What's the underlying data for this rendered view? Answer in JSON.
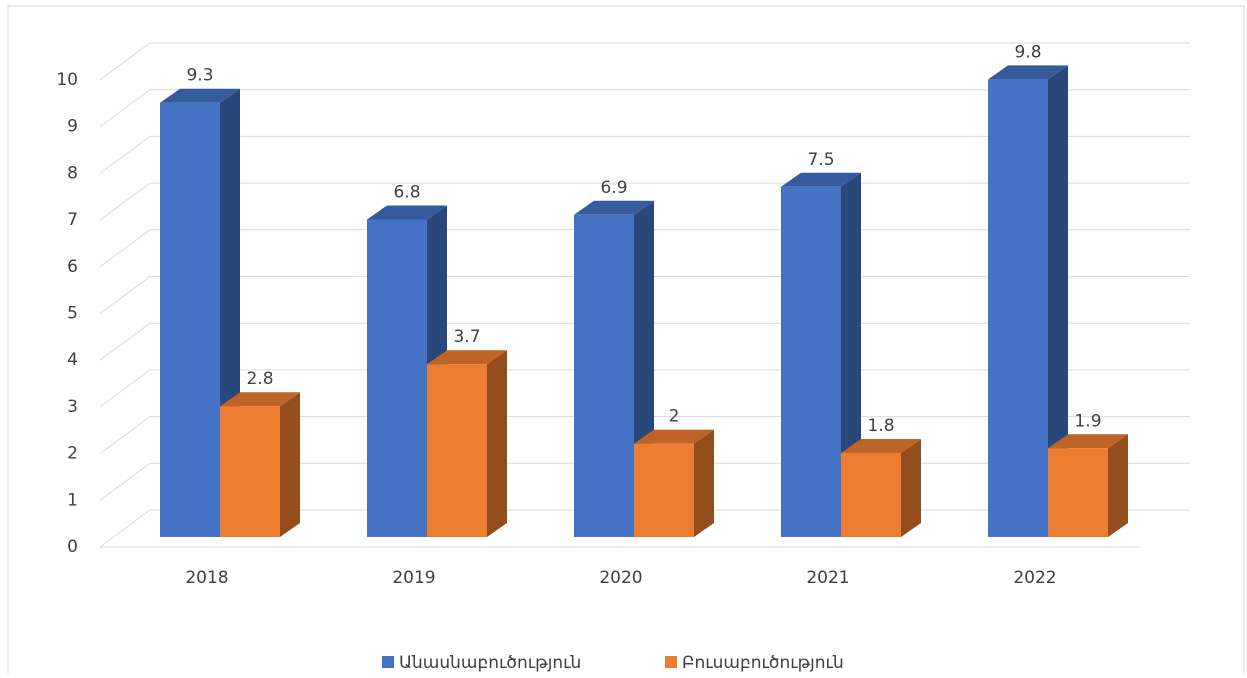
{
  "chart_data": {
    "type": "bar3d",
    "categories": [
      "2018",
      "2019",
      "2020",
      "2021",
      "2022"
    ],
    "series": [
      {
        "name": "Անասնաբուծություն",
        "color": "#4472c4",
        "values": [
          9.3,
          6.8,
          6.9,
          7.5,
          9.8
        ]
      },
      {
        "name": "Բուսաբուծություն",
        "color": "#ed7d31",
        "values": [
          2.8,
          3.7,
          2,
          1.8,
          1.9
        ]
      }
    ],
    "ylim": [
      0,
      10
    ],
    "yticks": [
      0,
      1,
      2,
      3,
      4,
      5,
      6,
      7,
      8,
      9,
      10
    ],
    "grid": true,
    "legend": "bottom"
  }
}
